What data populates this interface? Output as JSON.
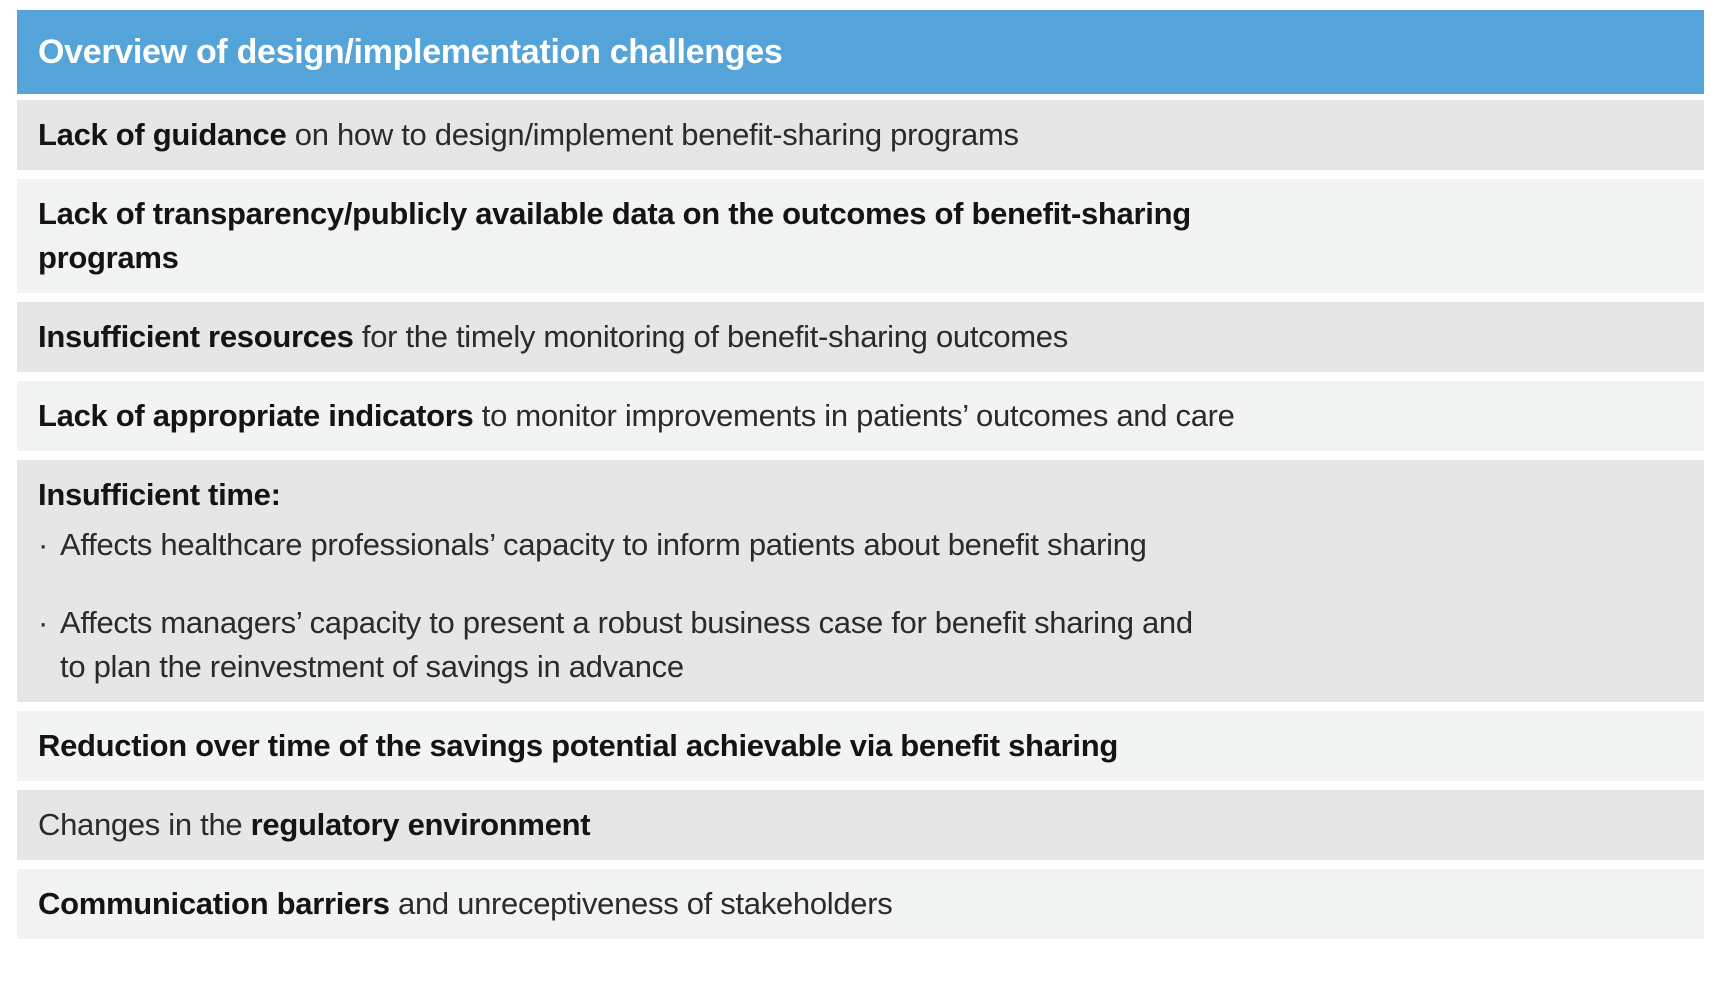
{
  "colors": {
    "header_bg": "#55a4d9",
    "header_text": "#ffffff",
    "row_dark": "#e6e6e7",
    "row_light": "#f2f3f3",
    "body_text": "#2b2b2b",
    "bold_text": "#141414",
    "page_bg": "#ffffff"
  },
  "table": {
    "title": "Overview of design/implementation challenges",
    "bullet_char": "·",
    "rows": [
      {
        "shade": "dark",
        "segments": [
          {
            "text": "Lack of guidance",
            "bold": true
          },
          {
            "text": " on how to design/implement benefit-sharing programs",
            "bold": false
          }
        ]
      },
      {
        "shade": "light",
        "segments": [
          {
            "text": "Lack of transparency/publicly available data on the outcomes of benefit-sharing\nprograms",
            "bold": true
          }
        ]
      },
      {
        "shade": "dark",
        "segments": [
          {
            "text": "Insufficient resources",
            "bold": true
          },
          {
            "text": " for the timely monitoring of benefit-sharing outcomes",
            "bold": false
          }
        ]
      },
      {
        "shade": "light",
        "segments": [
          {
            "text": "Lack of appropriate indicators",
            "bold": true
          },
          {
            "text": " to monitor improvements in patients’ outcomes and care",
            "bold": false
          }
        ]
      },
      {
        "shade": "dark",
        "segments": [
          {
            "text": "Insufficient time:",
            "bold": true
          }
        ],
        "bullets": [
          "Affects healthcare professionals’ capacity to inform patients about benefit sharing",
          "Affects managers’ capacity to present a robust business case for benefit sharing and\nto plan the reinvestment of savings in advance"
        ]
      },
      {
        "shade": "light",
        "segments": [
          {
            "text": "Reduction over time of the savings potential achievable via benefit sharing",
            "bold": true
          }
        ]
      },
      {
        "shade": "dark",
        "segments": [
          {
            "text": "Changes in the ",
            "bold": false
          },
          {
            "text": "regulatory environment",
            "bold": true
          }
        ]
      },
      {
        "shade": "light",
        "segments": [
          {
            "text": "Communication barriers",
            "bold": true
          },
          {
            "text": " and unreceptiveness of stakeholders",
            "bold": false
          }
        ]
      }
    ]
  }
}
